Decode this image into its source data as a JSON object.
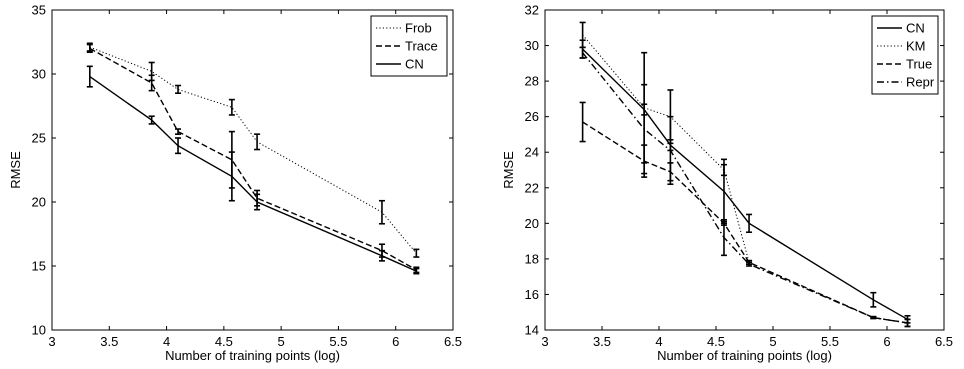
{
  "chart_data": [
    {
      "type": "line",
      "xlabel": "Number of training points (log)",
      "ylabel": "RMSE",
      "xlim": [
        3,
        6.5
      ],
      "ylim": [
        10,
        35
      ],
      "xticks": [
        3,
        3.5,
        4,
        4.5,
        5,
        5.5,
        6,
        6.5
      ],
      "yticks": [
        10,
        15,
        20,
        25,
        30,
        35
      ],
      "xtick_labels": [
        "3",
        "3.5",
        "4",
        "4.5",
        "5",
        "5.5",
        "6",
        "6.5"
      ],
      "ytick_labels": [
        "10",
        "15",
        "20",
        "25",
        "30",
        "35"
      ],
      "grid": false,
      "legend_position": "top-right",
      "x": [
        3.33,
        3.87,
        4.1,
        4.57,
        4.79,
        5.88,
        6.18
      ],
      "series": [
        {
          "name": "Frob",
          "style": "dotted",
          "values": [
            32.1,
            30.2,
            28.8,
            27.4,
            24.7,
            19.2,
            16.0
          ],
          "errors": [
            0.3,
            0.7,
            0.3,
            0.6,
            0.6,
            0.9,
            0.3
          ]
        },
        {
          "name": "Trace",
          "style": "dashed",
          "values": [
            32.0,
            29.3,
            25.5,
            23.3,
            20.3,
            16.2,
            14.7
          ],
          "errors": [
            0.3,
            0.6,
            0.2,
            2.2,
            0.6,
            0.5,
            0.2
          ]
        },
        {
          "name": "CN",
          "style": "solid",
          "values": [
            29.8,
            26.4,
            24.4,
            22.0,
            20.0,
            15.8,
            14.6
          ],
          "errors": [
            0.8,
            0.3,
            0.6,
            1.9,
            0.6,
            0.4,
            0.2
          ]
        }
      ]
    },
    {
      "type": "line",
      "xlabel": "Number of training points (log)",
      "ylabel": "RMSE",
      "xlim": [
        3,
        6.5
      ],
      "ylim": [
        14,
        32
      ],
      "xticks": [
        3,
        3.5,
        4,
        4.5,
        5,
        5.5,
        6,
        6.5
      ],
      "yticks": [
        14,
        16,
        18,
        20,
        22,
        24,
        26,
        28,
        30,
        32
      ],
      "xtick_labels": [
        "3",
        "3.5",
        "4",
        "4.5",
        "5",
        "5.5",
        "6",
        "6.5"
      ],
      "ytick_labels": [
        "14",
        "16",
        "18",
        "20",
        "22",
        "24",
        "26",
        "28",
        "30",
        "32"
      ],
      "grid": false,
      "legend_position": "top-right",
      "series": [
        {
          "name": "CN",
          "style": "solid",
          "x": [
            3.33,
            3.87,
            4.1,
            4.57,
            4.79,
            5.88,
            6.18
          ],
          "values": [
            29.8,
            26.4,
            24.4,
            21.8,
            20.0,
            15.7,
            14.6
          ],
          "errors": [
            0.5,
            0.3,
            0.3,
            1.8,
            0.5,
            0.4,
            0.2
          ]
        },
        {
          "name": "KM",
          "style": "dotted",
          "x": [
            3.33,
            3.87,
            4.1,
            4.57,
            4.79
          ],
          "values": [
            30.6,
            26.5,
            26.0,
            23.0,
            17.8
          ],
          "errors": [
            0.7,
            3.1,
            1.5,
            0.3,
            0.1
          ]
        },
        {
          "name": "True",
          "style": "dashed",
          "x": [
            3.33,
            3.87,
            4.1,
            4.57,
            4.79,
            5.88,
            6.18
          ],
          "values": [
            25.7,
            23.5,
            22.9,
            20.0,
            17.8,
            14.7,
            14.4
          ],
          "errors": [
            1.1,
            0.9,
            0.5,
            0.1,
            0.1,
            0.05,
            0.2
          ]
        },
        {
          "name": "Repr",
          "style": "dashdot",
          "x": [
            3.33,
            3.87,
            4.1,
            4.57,
            4.79,
            5.88,
            6.18
          ],
          "values": [
            29.6,
            25.3,
            24.1,
            19.2,
            17.7,
            14.7,
            14.4
          ],
          "errors": [
            0.3,
            2.5,
            1.9,
            1.0,
            0.1,
            0.05,
            0.2
          ]
        }
      ]
    }
  ]
}
